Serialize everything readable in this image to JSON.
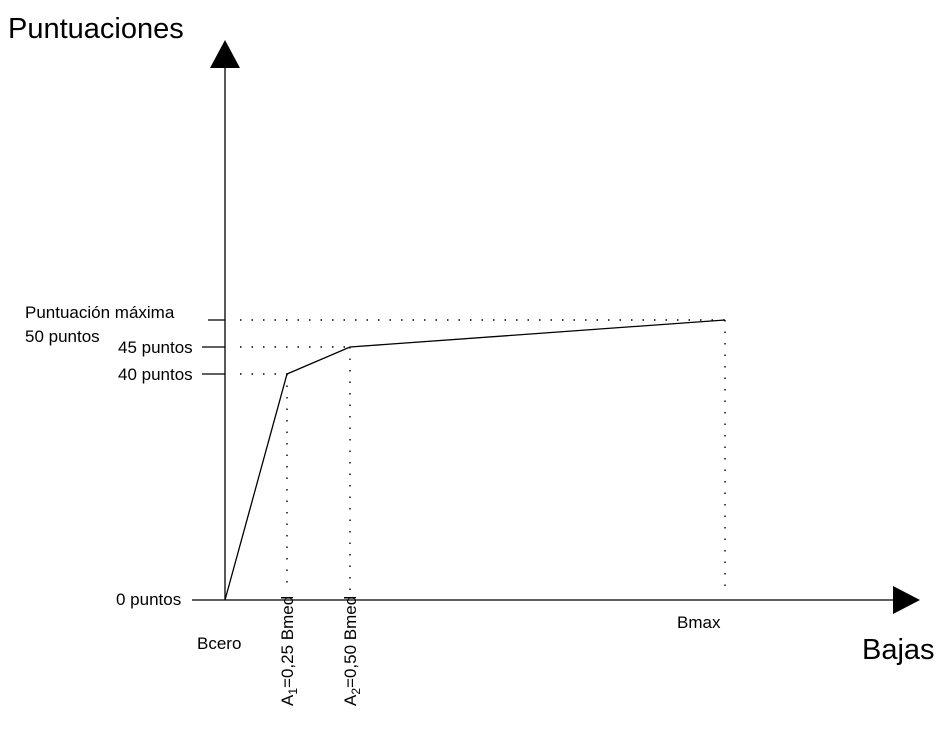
{
  "chart_data": {
    "type": "line",
    "title": "",
    "ylabel": "Puntuaciones",
    "xlabel": "Bajas",
    "x_labels": {
      "bcero": "Bcero",
      "a1_sub": "1",
      "a1": "=0,25 Bmed",
      "a2_sub": "2",
      "a2": "=0,50 Bmed",
      "bmax": "Bmax"
    },
    "y_labels": {
      "zero": "0 puntos",
      "p40": "40 puntos",
      "p45": "45 puntos",
      "max_line1": "Puntuación máxima",
      "max_line2": "50 puntos"
    },
    "series": [
      {
        "x": [
          0,
          0.25,
          0.5,
          2.0
        ],
        "y": [
          0,
          40,
          45,
          50
        ]
      }
    ]
  }
}
